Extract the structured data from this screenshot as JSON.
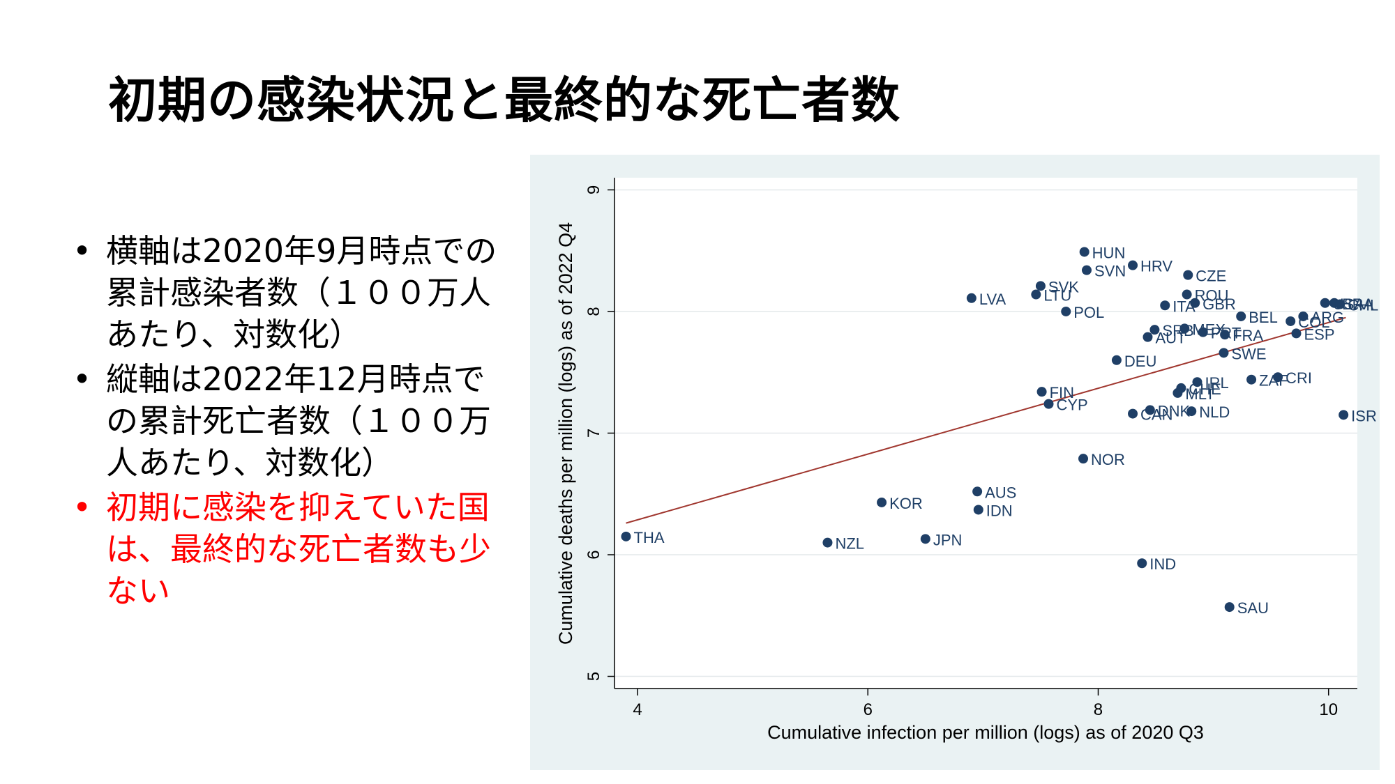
{
  "slide": {
    "title": "初期の感染状況と最終的な死亡者数",
    "bullets": [
      {
        "text": "横軸は2020年9月時点での累計感染者数（１００万人あたり、対数化）",
        "color": "#000000"
      },
      {
        "text": "縦軸は2022年12月時点での累計死亡者数（１００万人あたり、対数化）",
        "color": "#000000"
      },
      {
        "text": "初期に感染を抑えていた国は、最終的な死亡者数も少ない",
        "color": "#ff0000"
      }
    ],
    "bullet_symbol": "•"
  },
  "chart_data": {
    "type": "scatter",
    "title": "",
    "xlabel": "Cumulative infection per million (logs) as of 2020 Q3",
    "ylabel": "Cumulative deaths per million (logs) as of 2022 Q4",
    "xlim": [
      3.8,
      10.25
    ],
    "ylim": [
      4.9,
      9.1
    ],
    "xticks": [
      4,
      6,
      8,
      10
    ],
    "yticks": [
      5,
      6,
      7,
      8,
      9
    ],
    "grid": true,
    "colors": {
      "point": "#1f3f66",
      "label": "#1f3f66",
      "fit": "#a0362e",
      "background": "#eaf2f3",
      "plot_bg": "#ffffff"
    },
    "fit_line": {
      "x": [
        3.9,
        10.15
      ],
      "y": [
        6.26,
        7.95
      ]
    },
    "points": [
      {
        "label": "THA",
        "x": 3.9,
        "y": 6.15
      },
      {
        "label": "NZL",
        "x": 5.65,
        "y": 6.1
      },
      {
        "label": "JPN",
        "x": 6.5,
        "y": 6.13
      },
      {
        "label": "KOR",
        "x": 6.12,
        "y": 6.43
      },
      {
        "label": "AUS",
        "x": 6.95,
        "y": 6.52
      },
      {
        "label": "IDN",
        "x": 6.96,
        "y": 6.37
      },
      {
        "label": "LVA",
        "x": 6.9,
        "y": 8.11
      },
      {
        "label": "SVK",
        "x": 7.5,
        "y": 8.21
      },
      {
        "label": "LTU",
        "x": 7.46,
        "y": 8.14
      },
      {
        "label": "POL",
        "x": 7.72,
        "y": 8.0
      },
      {
        "label": "HUN",
        "x": 7.88,
        "y": 8.49
      },
      {
        "label": "SVN",
        "x": 7.9,
        "y": 8.34
      },
      {
        "label": "HRV",
        "x": 8.3,
        "y": 8.38
      },
      {
        "label": "CZE",
        "x": 8.78,
        "y": 8.3
      },
      {
        "label": "ROU",
        "x": 8.77,
        "y": 8.14
      },
      {
        "label": "ITA",
        "x": 8.58,
        "y": 8.05
      },
      {
        "label": "GBR",
        "x": 8.84,
        "y": 8.07
      },
      {
        "label": "SRB",
        "x": 8.49,
        "y": 7.85
      },
      {
        "label": "AUT",
        "x": 8.43,
        "y": 7.79
      },
      {
        "label": "MEX",
        "x": 8.75,
        "y": 7.86
      },
      {
        "label": "PRT",
        "x": 8.91,
        "y": 7.83
      },
      {
        "label": "FRA",
        "x": 9.1,
        "y": 7.81
      },
      {
        "label": "BEL",
        "x": 9.24,
        "y": 7.96
      },
      {
        "label": "ARG",
        "x": 9.78,
        "y": 7.96
      },
      {
        "label": "COL",
        "x": 9.67,
        "y": 7.92
      },
      {
        "label": "ESP",
        "x": 9.72,
        "y": 7.82
      },
      {
        "label": "USA",
        "x": 9.97,
        "y": 8.07
      },
      {
        "label": "BRA",
        "x": 10.05,
        "y": 8.07
      },
      {
        "label": "CHL",
        "x": 10.1,
        "y": 8.06
      },
      {
        "label": "SWE",
        "x": 9.09,
        "y": 7.66
      },
      {
        "label": "DEU",
        "x": 8.16,
        "y": 7.6
      },
      {
        "label": "IRL",
        "x": 8.86,
        "y": 7.42
      },
      {
        "label": "CHE",
        "x": 8.72,
        "y": 7.37
      },
      {
        "label": "MLT",
        "x": 8.69,
        "y": 7.33
      },
      {
        "label": "ZAF",
        "x": 9.33,
        "y": 7.44
      },
      {
        "label": "CRI",
        "x": 9.56,
        "y": 7.46
      },
      {
        "label": "FIN",
        "x": 7.51,
        "y": 7.34
      },
      {
        "label": "CYP",
        "x": 7.57,
        "y": 7.24
      },
      {
        "label": "DNK",
        "x": 8.45,
        "y": 7.19
      },
      {
        "label": "CAN",
        "x": 8.3,
        "y": 7.16
      },
      {
        "label": "NLD",
        "x": 8.81,
        "y": 7.18
      },
      {
        "label": "ISR",
        "x": 10.13,
        "y": 7.15
      },
      {
        "label": "NOR",
        "x": 7.87,
        "y": 6.79
      },
      {
        "label": "IND",
        "x": 8.38,
        "y": 5.93
      },
      {
        "label": "SAU",
        "x": 9.14,
        "y": 5.57
      }
    ]
  }
}
